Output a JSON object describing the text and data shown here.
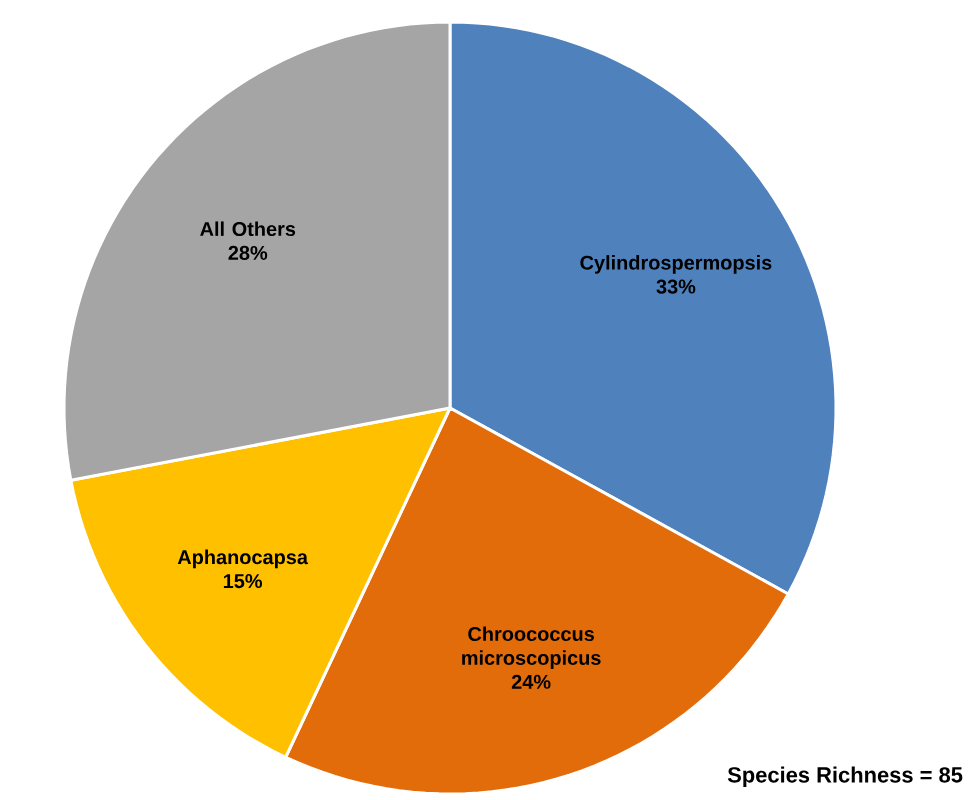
{
  "chart_data": {
    "type": "pie",
    "categories": [
      "Cylindrospermopsis",
      "Chroococcus microscopicus",
      "Aphanocapsa",
      "All Others"
    ],
    "values": [
      33,
      24,
      15,
      28
    ],
    "value_labels": [
      "33%",
      "24%",
      "15%",
      "28%"
    ],
    "colors": [
      "#4f81bd",
      "#e36c0a",
      "#ffc000",
      "#a5a5a5"
    ],
    "annotations": [
      "Species Richness = 85"
    ]
  }
}
